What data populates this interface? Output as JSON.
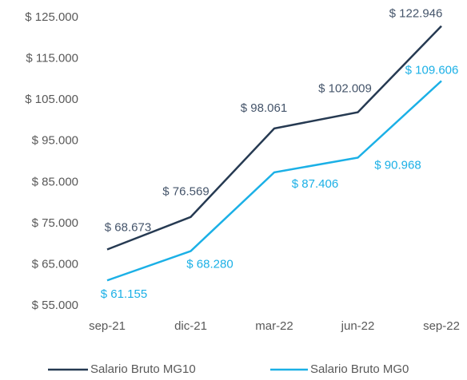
{
  "chart_data": {
    "type": "line",
    "categories": [
      "sep-21",
      "dic-21",
      "mar-22",
      "jun-22",
      "sep-22"
    ],
    "series": [
      {
        "name": "Salario Bruto MG10",
        "color": "#263a52",
        "values": [
          68673,
          76569,
          98061,
          102009,
          122946
        ],
        "value_labels": [
          "$ 68.673",
          "$ 76.569",
          "$ 98.061",
          "$ 102.009",
          "$ 122.946"
        ]
      },
      {
        "name": "Salario Bruto MG0",
        "color": "#1bb0e6",
        "values": [
          61155,
          68280,
          87406,
          90968,
          109606
        ],
        "value_labels": [
          "$ 61.155",
          "$ 68.280",
          "$ 87.406",
          "$ 90.968",
          "$ 109.606"
        ]
      }
    ],
    "ylim": [
      55000,
      125000
    ],
    "yticks": [
      {
        "value": 55000,
        "label": "$ 55.000"
      },
      {
        "value": 65000,
        "label": "$ 65.000"
      },
      {
        "value": 75000,
        "label": "$ 75.000"
      },
      {
        "value": 85000,
        "label": "$ 85.000"
      },
      {
        "value": 95000,
        "label": "$ 95.000"
      },
      {
        "value": 105000,
        "label": "$ 105.000"
      },
      {
        "value": 115000,
        "label": "$ 115.000"
      },
      {
        "value": 125000,
        "label": "$ 125.000"
      }
    ],
    "grid": false
  }
}
